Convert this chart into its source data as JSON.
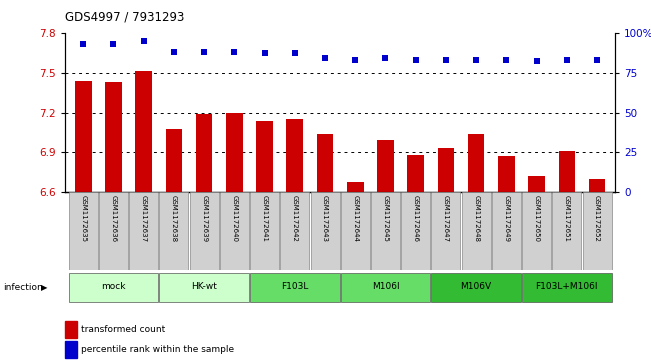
{
  "title": "GDS4997 / 7931293",
  "samples": [
    "GSM1172635",
    "GSM1172636",
    "GSM1172637",
    "GSM1172638",
    "GSM1172639",
    "GSM1172640",
    "GSM1172641",
    "GSM1172642",
    "GSM1172643",
    "GSM1172644",
    "GSM1172645",
    "GSM1172646",
    "GSM1172647",
    "GSM1172648",
    "GSM1172649",
    "GSM1172650",
    "GSM1172651",
    "GSM1172652"
  ],
  "bar_values": [
    7.44,
    7.43,
    7.51,
    7.08,
    7.19,
    7.2,
    7.14,
    7.15,
    7.04,
    6.68,
    6.99,
    6.88,
    6.93,
    7.04,
    6.87,
    6.72,
    6.91,
    6.7
  ],
  "dot_values": [
    93,
    93,
    95,
    88,
    88,
    88,
    87,
    87,
    84,
    83,
    84,
    83,
    83,
    83,
    83,
    82,
    83,
    83
  ],
  "ylim": [
    6.6,
    7.8
  ],
  "yticks": [
    6.6,
    6.9,
    7.2,
    7.5,
    7.8
  ],
  "y2lim": [
    0,
    100
  ],
  "y2ticks": [
    0,
    25,
    50,
    75,
    100
  ],
  "bar_color": "#cc0000",
  "dot_color": "#0000cc",
  "groups": [
    {
      "label": "mock",
      "start": 0,
      "end": 2,
      "color": "#ccffcc"
    },
    {
      "label": "HK-wt",
      "start": 3,
      "end": 5,
      "color": "#ccffcc"
    },
    {
      "label": "F103L",
      "start": 6,
      "end": 8,
      "color": "#66dd66"
    },
    {
      "label": "M106I",
      "start": 9,
      "end": 11,
      "color": "#66dd66"
    },
    {
      "label": "M106V",
      "start": 12,
      "end": 14,
      "color": "#33bb33"
    },
    {
      "label": "F103L+M106I",
      "start": 15,
      "end": 17,
      "color": "#33bb33"
    }
  ],
  "ylabel_color": "#cc0000",
  "y2label_color": "#0000cc",
  "legend_items": [
    {
      "color": "#cc0000",
      "marker": "s",
      "label": "transformed count"
    },
    {
      "color": "#0000cc",
      "marker": "s",
      "label": "percentile rank within the sample"
    }
  ]
}
